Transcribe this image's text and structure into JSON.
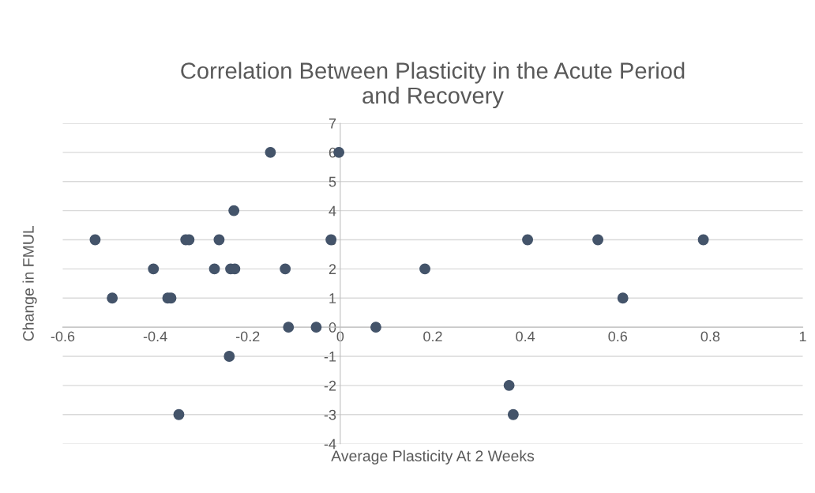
{
  "chart_data": {
    "type": "scatter",
    "title": "Correlation Between Plasticity in the Acute Period\nand Recovery",
    "xlabel": "Average Plasticity At 2 Weeks",
    "ylabel": "Change in FMUL",
    "x": [
      -0.53,
      -0.493,
      -0.404,
      -0.373,
      -0.366,
      -0.349,
      -0.334,
      -0.327,
      -0.272,
      -0.262,
      -0.24,
      -0.237,
      -0.228,
      -0.23,
      -0.151,
      -0.119,
      -0.112,
      -0.052,
      -0.02,
      -0.003,
      0.077,
      0.183,
      0.365,
      0.374,
      0.405,
      0.557,
      0.611,
      0.785
    ],
    "values": [
      3,
      1,
      2,
      1,
      1,
      -3,
      3,
      3,
      2,
      3,
      -1,
      2,
      2,
      4,
      6,
      2,
      0,
      0,
      3,
      6,
      0,
      2,
      -2,
      -3,
      3,
      3,
      1,
      3
    ],
    "color": "#44546a",
    "marker": "circle",
    "grid": "y",
    "xlim": [
      -0.6,
      1
    ],
    "xticks": [
      -0.6,
      -0.4,
      -0.2,
      0,
      0.2,
      0.4,
      0.6,
      0.8,
      1
    ],
    "ylim": [
      -4,
      7
    ],
    "yticks": [
      -4,
      -3,
      -2,
      -1,
      0,
      1,
      2,
      3,
      4,
      5,
      6,
      7
    ]
  }
}
